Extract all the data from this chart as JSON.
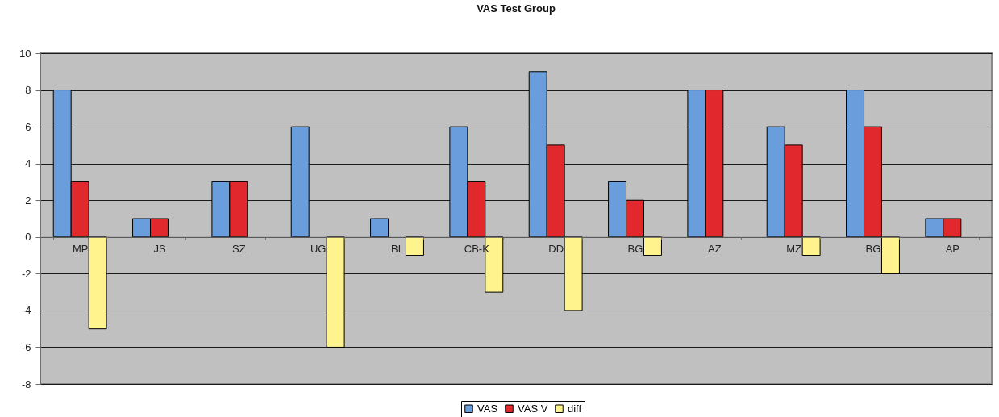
{
  "chart_data": {
    "type": "bar",
    "title": "VAS Test Group",
    "categories": [
      "MP",
      "JS",
      "SZ",
      "UG",
      "BL",
      "CB-K",
      "DD",
      "BG",
      "AZ",
      "MZ",
      "BG",
      "AP"
    ],
    "series": [
      {
        "name": "VAS",
        "color": "#6a9ddb",
        "values": [
          8,
          1,
          3,
          6,
          1,
          6,
          9,
          3,
          8,
          6,
          8,
          1
        ]
      },
      {
        "name": "VAS V",
        "color": "#e0282d",
        "values": [
          3,
          1,
          3,
          null,
          null,
          3,
          5,
          2,
          8,
          5,
          6,
          1
        ]
      },
      {
        "name": "diff",
        "color": "#fff38d",
        "values": [
          -5,
          null,
          null,
          -6,
          -1,
          -3,
          -4,
          -1,
          null,
          -1,
          -2,
          null
        ]
      }
    ],
    "ylim": [
      -8,
      10
    ],
    "yticks": [
      -8,
      -6,
      -4,
      -2,
      0,
      2,
      4,
      6,
      8,
      10
    ],
    "grid": "y",
    "legend": "bottom"
  }
}
